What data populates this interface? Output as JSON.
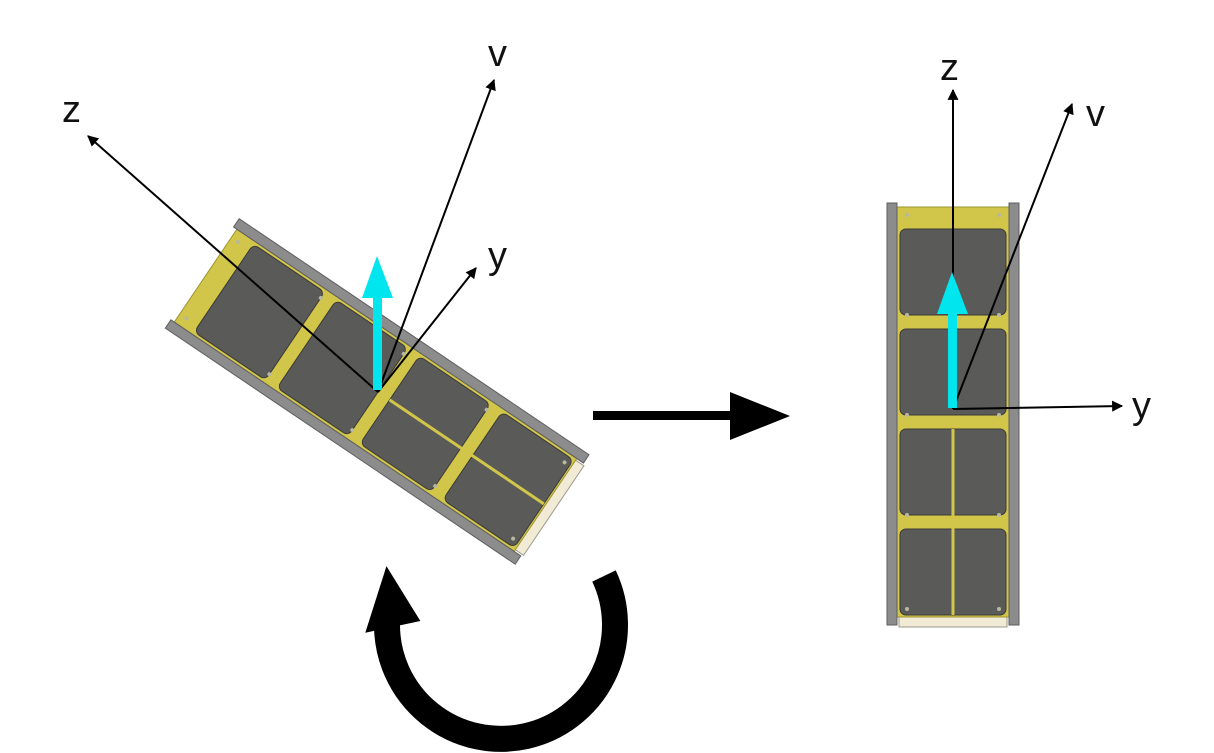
{
  "colors": {
    "background": "#ffffff",
    "axis": "#000000",
    "velocity_arrow": "#00e5ee",
    "solar_cell": "#5a5a58",
    "cell_border": "#3a3a38",
    "pcb": "#d2c64a",
    "rail": "#8c8c8c",
    "rail_dark": "#6e6e6e",
    "end_plate": "#f1ebd6",
    "rotation_arrow": "#000000",
    "transition_arrow": "#000000"
  },
  "left_satellite": {
    "axes": [
      {
        "id": "z",
        "label": "z"
      },
      {
        "id": "v",
        "label": "v"
      },
      {
        "id": "y",
        "label": "y"
      }
    ]
  },
  "right_satellite": {
    "axes": [
      {
        "id": "z",
        "label": "z"
      },
      {
        "id": "v",
        "label": "v"
      },
      {
        "id": "y",
        "label": "y"
      }
    ]
  },
  "icons": {
    "rotation": "counter-clockwise-rotation-arrow-icon",
    "transition": "right-arrow-icon",
    "velocity": "velocity-up-arrow-icon"
  }
}
